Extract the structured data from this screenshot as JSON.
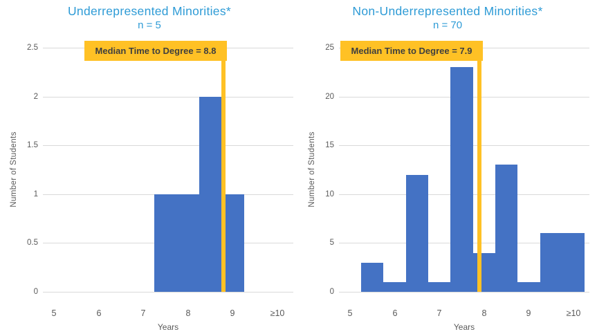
{
  "colors": {
    "background": "#FFFFFF",
    "bar": "#4472C4",
    "accent": "#FFC125",
    "title_text": "#2E9BD6",
    "axis_text": "#595959",
    "gridline": "#D9D9D9",
    "callout_text": "#3F3F3F"
  },
  "chart_data": [
    {
      "type": "bar",
      "variant": "histogram",
      "title": "Underrepresented Minorities*",
      "subtitle": "n = 5",
      "n": 5,
      "annotation": "Median Time to Degree = 8.8",
      "median_value": 8.8,
      "xlabel": "Years",
      "ylabel": "Number  of Students",
      "grid": true,
      "legend": "none",
      "xlim": [
        4.75,
        10.35
      ],
      "ylim": [
        0,
        2.5
      ],
      "y_ticks": [
        {
          "value": 0,
          "label": "0"
        },
        {
          "value": 0.5,
          "label": "0.5"
        },
        {
          "value": 1,
          "label": "1"
        },
        {
          "value": 1.5,
          "label": "1.5"
        },
        {
          "value": 2,
          "label": "2"
        },
        {
          "value": 2.5,
          "label": "2.5"
        }
      ],
      "x_ticks": [
        {
          "value": 5,
          "label": "5"
        },
        {
          "value": 6,
          "label": "6"
        },
        {
          "value": 7,
          "label": "7"
        },
        {
          "value": 8,
          "label": "8"
        },
        {
          "value": 9,
          "label": "9"
        },
        {
          "value": 10,
          "label": "≥10"
        }
      ],
      "bin_width": 0.5,
      "bins": [
        {
          "x0": 7.25,
          "x1": 7.75,
          "count": 1
        },
        {
          "x0": 7.75,
          "x1": 8.25,
          "count": 1
        },
        {
          "x0": 8.25,
          "x1": 8.75,
          "count": 2
        },
        {
          "x0": 8.75,
          "x1": 9.25,
          "count": 1
        }
      ]
    },
    {
      "type": "bar",
      "variant": "histogram",
      "title": "Non-Underrepresented Minorities*",
      "subtitle": "n = 70",
      "n": 70,
      "annotation": "Median Time to Degree = 7.9",
      "median_value": 7.9,
      "xlabel": "Years",
      "ylabel": "Number  of Students",
      "grid": true,
      "legend": "none",
      "xlim": [
        4.75,
        10.35
      ],
      "ylim": [
        0,
        25
      ],
      "y_ticks": [
        {
          "value": 0,
          "label": "0"
        },
        {
          "value": 5,
          "label": "5"
        },
        {
          "value": 10,
          "label": "10"
        },
        {
          "value": 15,
          "label": "15"
        },
        {
          "value": 20,
          "label": "20"
        },
        {
          "value": 25,
          "label": "25"
        }
      ],
      "x_ticks": [
        {
          "value": 5,
          "label": "5"
        },
        {
          "value": 6,
          "label": "6"
        },
        {
          "value": 7,
          "label": "7"
        },
        {
          "value": 8,
          "label": "8"
        },
        {
          "value": 9,
          "label": "9"
        },
        {
          "value": 10,
          "label": "≥10"
        }
      ],
      "bin_width": 0.5,
      "bins": [
        {
          "x0": 5.25,
          "x1": 5.75,
          "count": 3
        },
        {
          "x0": 5.75,
          "x1": 6.25,
          "count": 1
        },
        {
          "x0": 6.25,
          "x1": 6.75,
          "count": 12
        },
        {
          "x0": 6.75,
          "x1": 7.25,
          "count": 1
        },
        {
          "x0": 7.25,
          "x1": 7.75,
          "count": 23
        },
        {
          "x0": 7.75,
          "x1": 8.25,
          "count": 4
        },
        {
          "x0": 8.25,
          "x1": 8.75,
          "count": 13
        },
        {
          "x0": 8.75,
          "x1": 9.25,
          "count": 1
        },
        {
          "x0": 9.25,
          "x1": 9.75,
          "count": 6
        },
        {
          "x0": 9.75,
          "x1": 10.25,
          "count": 6
        }
      ]
    }
  ]
}
